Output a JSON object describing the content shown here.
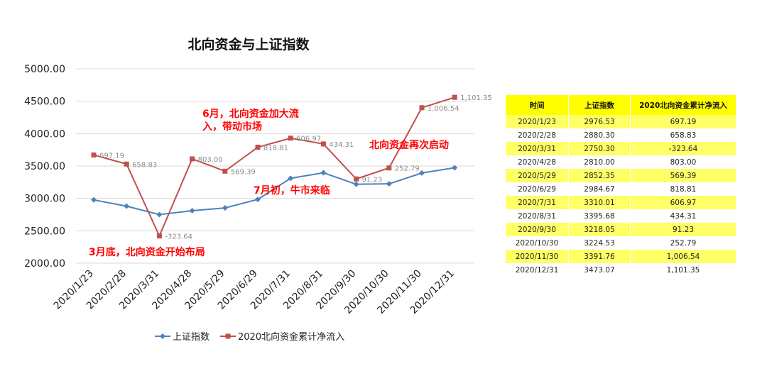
{
  "chart_data": {
    "type": "line",
    "title": "北向资金与上证指数",
    "categories": [
      "2020/1/23",
      "2020/2/28",
      "2020/3/31",
      "2020/4/28",
      "2020/5/29",
      "2020/6/29",
      "2020/7/31",
      "2020/8/31",
      "2020/9/30",
      "2020/10/30",
      "2020/11/30",
      "2020/12/31"
    ],
    "y_ticks": [
      "5000.00",
      "4500.00",
      "4000.00",
      "3500.00",
      "3000.00",
      "2500.00",
      "2000.00"
    ],
    "ylim": [
      2000,
      5000
    ],
    "series": [
      {
        "name": "上证指数",
        "color": "#4f81bd",
        "marker": "diamond",
        "values": [
          2976.53,
          2880.3,
          2750.3,
          2810.0,
          2852.35,
          2984.67,
          3310.01,
          3395.68,
          3218.05,
          3224.53,
          3391.76,
          3473.07
        ]
      },
      {
        "name": "2020北向资金累计净流入",
        "color": "#c0504d",
        "marker": "square",
        "plot_values": [
          3670,
          3530,
          2420,
          3610,
          3420,
          3790,
          3930,
          3840,
          3300,
          3470,
          4400,
          4560
        ],
        "labels": [
          "697.19",
          "658.83",
          "-323.64",
          "803.00",
          "569.39",
          "818.81",
          "606.97",
          "434.31",
          "91.23",
          "252.79",
          "1,006.54",
          "1,101.35"
        ]
      }
    ],
    "annotations": [
      {
        "text": "3月底，北向资金开始布局"
      },
      {
        "text": "6月，北向资金加大流"
      },
      {
        "text": "入，带动市场"
      },
      {
        "text": "7月初，牛市来临"
      },
      {
        "text": "北向资金再次启动"
      }
    ],
    "legend": {
      "position": "bottom"
    }
  },
  "table": {
    "headers": [
      "时间",
      "上证指数",
      "2020北向资金累计净流入"
    ],
    "rows": [
      [
        "2020/1/23",
        "2976.53",
        "697.19"
      ],
      [
        "2020/2/28",
        "2880.30",
        "658.83"
      ],
      [
        "2020/3/31",
        "2750.30",
        "-323.64"
      ],
      [
        "2020/4/28",
        "2810.00",
        "803.00"
      ],
      [
        "2020/5/29",
        "2852.35",
        "569.39"
      ],
      [
        "2020/6/29",
        "2984.67",
        "818.81"
      ],
      [
        "2020/7/31",
        "3310.01",
        "606.97"
      ],
      [
        "2020/8/31",
        "3395.68",
        "434.31"
      ],
      [
        "2020/9/30",
        "3218.05",
        "91.23"
      ],
      [
        "2020/10/30",
        "3224.53",
        "252.79"
      ],
      [
        "2020/11/30",
        "3391.76",
        "1,006.54"
      ],
      [
        "2020/12/31",
        "3473.07",
        "1,101.35"
      ]
    ],
    "highlight_color": "#ffff66"
  }
}
